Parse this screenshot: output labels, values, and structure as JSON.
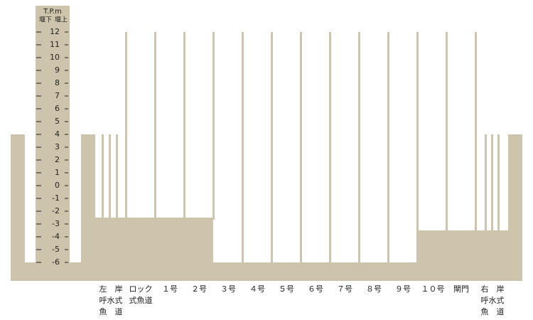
{
  "scale": {
    "title": "T.P.m",
    "downstream": "堰下",
    "upstream": "堰上",
    "ticks": [
      12,
      11,
      10,
      9,
      8,
      7,
      6,
      5,
      4,
      3,
      2,
      1,
      0,
      -1,
      -2,
      -3,
      -4,
      -5,
      -6
    ]
  },
  "sections": [
    {
      "label": [
        "左　岸",
        "呼水式",
        "魚　道"
      ]
    },
    {
      "label": [
        "ロック",
        "式魚道"
      ]
    },
    {
      "label": [
        "１号"
      ]
    },
    {
      "label": [
        "２号"
      ]
    },
    {
      "label": [
        "３号"
      ]
    },
    {
      "label": [
        "４号"
      ]
    },
    {
      "label": [
        "５号"
      ]
    },
    {
      "label": [
        "６号"
      ]
    },
    {
      "label": [
        "７号"
      ]
    },
    {
      "label": [
        "８号"
      ]
    },
    {
      "label": [
        "９号"
      ]
    },
    {
      "label": [
        "１０号"
      ]
    },
    {
      "label": [
        "閘門"
      ]
    },
    {
      "label": [
        "右　岸",
        "呼水式",
        "魚　道"
      ]
    }
  ]
}
